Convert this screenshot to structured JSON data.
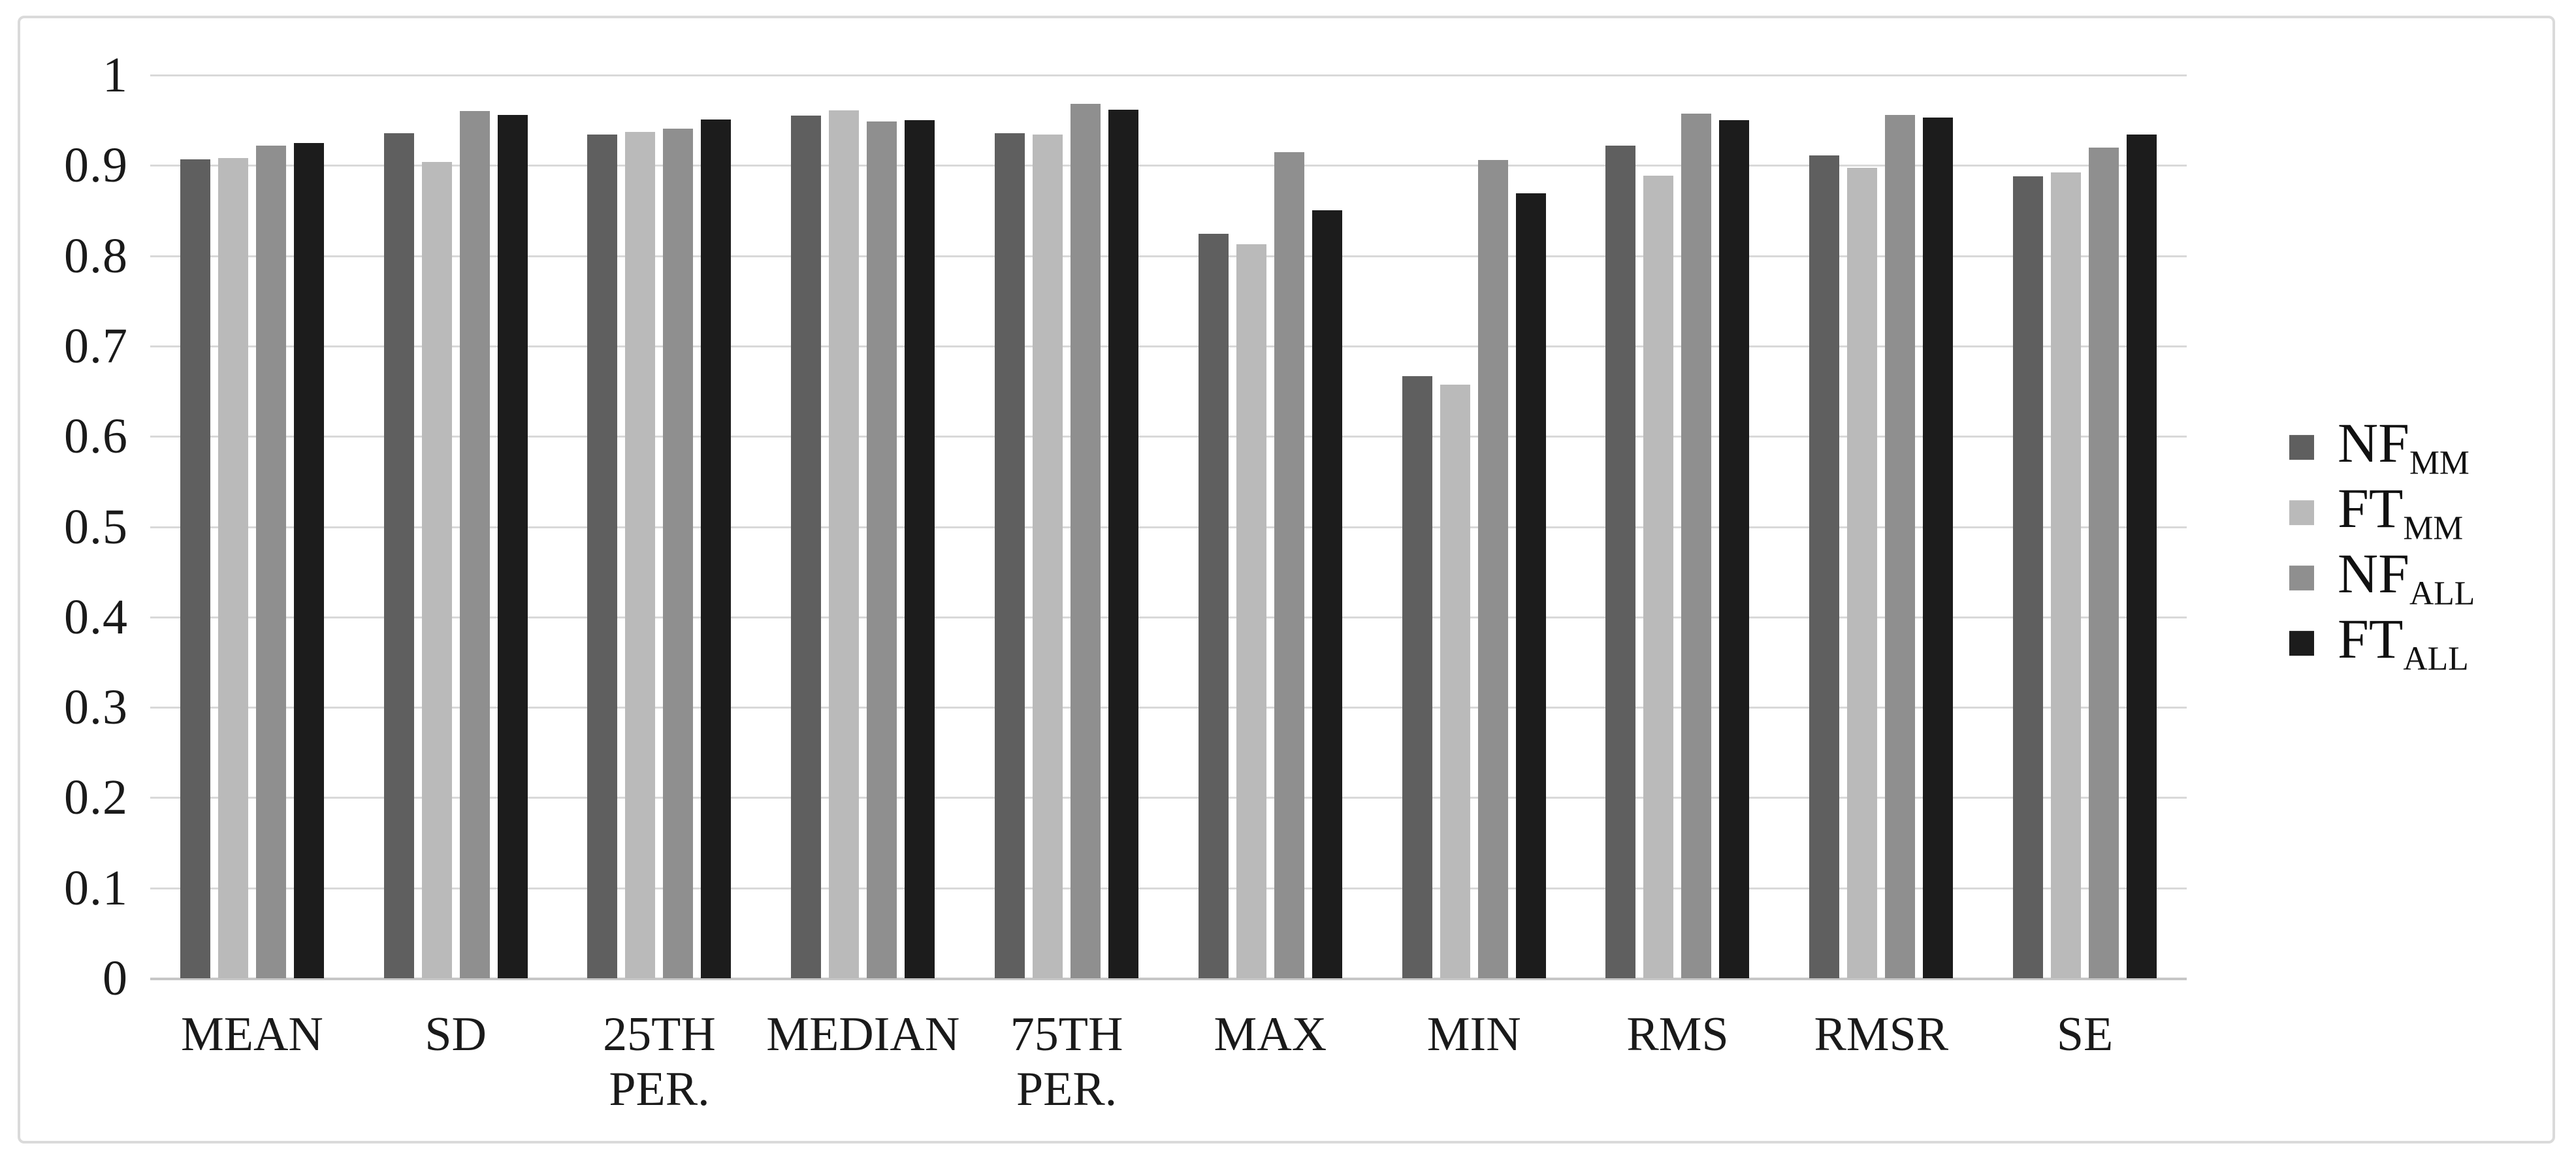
{
  "figure": {
    "background": "#ffffff",
    "border_color": "#dadada"
  },
  "colors": {
    "gridline": "#d9d9d9",
    "baseline": "#c6c6c6",
    "text": "#1a1a1a"
  },
  "chart_data": {
    "type": "bar",
    "title": "",
    "xlabel": "",
    "ylabel": "",
    "categories": [
      "MEAN",
      "SD",
      "25TH PER.",
      "MEDIAN",
      "75TH PER.",
      "MAX",
      "MIN",
      "RMS",
      "RMSR",
      "SE"
    ],
    "category_labels": [
      "MEAN",
      "SD",
      "25TH\nPER.",
      "MEDIAN",
      "75TH\nPER.",
      "MAX",
      "MIN",
      "RMS",
      "RMSR",
      "SE"
    ],
    "series": [
      {
        "name": "NF",
        "subscript": "MM",
        "color": "#5f5f5f",
        "values": [
          0.907,
          0.936,
          0.934,
          0.955,
          0.936,
          0.824,
          0.667,
          0.922,
          0.911,
          0.888
        ]
      },
      {
        "name": "FT",
        "subscript": "MM",
        "color": "#bababa",
        "values": [
          0.908,
          0.904,
          0.937,
          0.961,
          0.934,
          0.813,
          0.657,
          0.889,
          0.897,
          0.892
        ]
      },
      {
        "name": "NF",
        "subscript": "ALL",
        "color": "#8f8f8f",
        "values": [
          0.922,
          0.96,
          0.941,
          0.949,
          0.968,
          0.915,
          0.906,
          0.957,
          0.956,
          0.92
        ]
      },
      {
        "name": "FT",
        "subscript": "ALL",
        "color": "#1c1c1c",
        "values": [
          0.925,
          0.956,
          0.951,
          0.95,
          0.962,
          0.85,
          0.869,
          0.95,
          0.953,
          0.934
        ]
      }
    ],
    "ylim": [
      0,
      1
    ],
    "ytick_labels": [
      "0",
      "0.1",
      "0.2",
      "0.3",
      "0.4",
      "0.5",
      "0.6",
      "0.7",
      "0.8",
      "0.9",
      "1"
    ],
    "grid": true,
    "legend_position": "right"
  }
}
